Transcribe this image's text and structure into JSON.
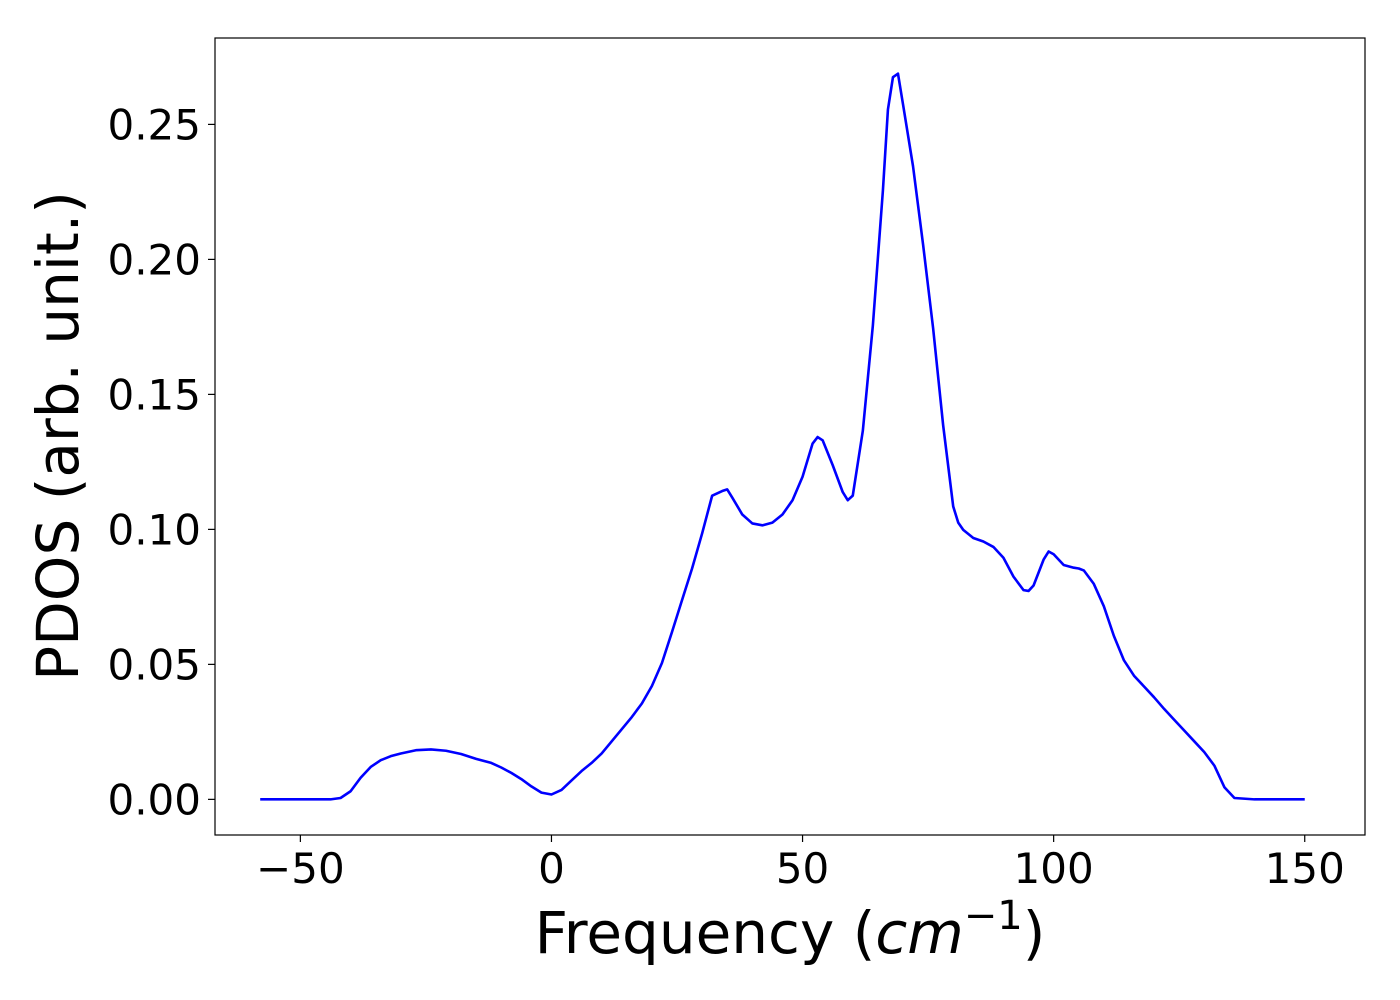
{
  "chart_data": {
    "type": "line",
    "xlabel_main": "Frequency (",
    "xlabel_unit": "cm",
    "xlabel_exp": "−1",
    "xlabel_close": ")",
    "ylabel": "PDOS (arb. unit.)",
    "xlim": [
      -67,
      162
    ],
    "ylim": [
      -0.0132,
      0.282
    ],
    "xticks": [
      -50,
      0,
      50,
      100,
      150
    ],
    "xtick_labels": [
      "−50",
      "0",
      "50",
      "100",
      "150"
    ],
    "yticks": [
      0.0,
      0.05,
      0.1,
      0.15,
      0.2,
      0.25
    ],
    "ytick_labels": [
      "0.00",
      "0.05",
      "0.10",
      "0.15",
      "0.20",
      "0.25"
    ],
    "grid": false,
    "series": [
      {
        "color": "#0000ff",
        "x": [
          -58,
          -50,
          -44,
          -42,
          -40,
          -38,
          -36,
          -34,
          -32,
          -30,
          -27,
          -24,
          -21,
          -18,
          -15,
          -12,
          -10,
          -8,
          -6,
          -4,
          -2,
          0,
          2,
          4,
          6,
          8,
          10,
          12,
          14,
          16,
          18,
          20,
          22,
          24,
          26,
          28,
          30,
          32,
          34,
          35,
          36,
          38,
          40,
          42,
          44,
          46,
          48,
          50,
          52,
          53,
          54,
          56,
          58,
          59,
          60,
          62,
          64,
          66,
          67,
          68,
          69,
          70,
          72,
          74,
          76,
          78,
          80,
          81,
          82,
          84,
          86,
          88,
          90,
          92,
          94,
          95,
          96,
          98,
          99,
          100,
          102,
          104,
          105,
          106,
          108,
          110,
          112,
          114,
          116,
          118,
          120,
          122,
          124,
          126,
          128,
          130,
          132,
          134,
          136,
          140,
          145,
          150
        ],
        "y": [
          0.0,
          0.0,
          0.0,
          0.0005,
          0.003,
          0.008,
          0.012,
          0.0145,
          0.016,
          0.017,
          0.0182,
          0.0185,
          0.018,
          0.0168,
          0.015,
          0.0135,
          0.0118,
          0.0098,
          0.0075,
          0.0048,
          0.0025,
          0.0018,
          0.0035,
          0.007,
          0.0105,
          0.0135,
          0.017,
          0.0215,
          0.026,
          0.0305,
          0.0355,
          0.042,
          0.0505,
          0.062,
          0.0738,
          0.0855,
          0.0985,
          0.1125,
          0.1142,
          0.1148,
          0.1118,
          0.1055,
          0.1022,
          0.1015,
          0.1025,
          0.1055,
          0.1108,
          0.1195,
          0.1318,
          0.1342,
          0.133,
          0.1238,
          0.1138,
          0.1108,
          0.1125,
          0.1365,
          0.1755,
          0.2255,
          0.2555,
          0.2675,
          0.2688,
          0.2575,
          0.2345,
          0.2055,
          0.1745,
          0.1385,
          0.1085,
          0.1025,
          0.0998,
          0.0968,
          0.0955,
          0.0935,
          0.0895,
          0.0825,
          0.0775,
          0.0772,
          0.0792,
          0.0888,
          0.0918,
          0.0908,
          0.0868,
          0.0858,
          0.0855,
          0.0848,
          0.0798,
          0.0715,
          0.0605,
          0.0515,
          0.0458,
          0.0418,
          0.0378,
          0.0335,
          0.0295,
          0.0255,
          0.0215,
          0.0175,
          0.0125,
          0.0045,
          0.0005,
          0.0,
          0.0,
          0.0
        ]
      }
    ]
  }
}
